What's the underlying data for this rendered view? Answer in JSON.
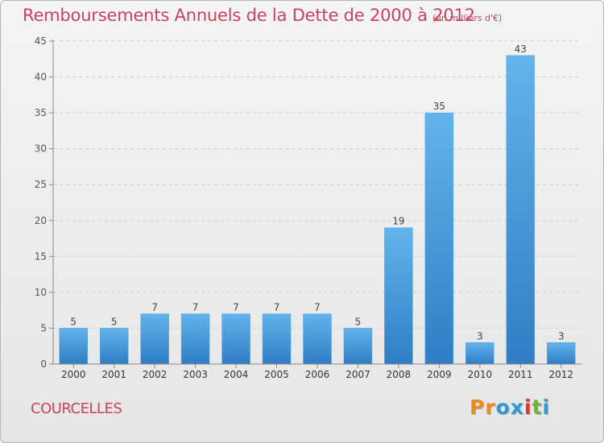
{
  "header": {
    "title": "Remboursements Annuels de la Dette de 2000 à 2012",
    "subtitle": "(en milliers d'€)"
  },
  "footer": {
    "commune": "COURCELLES",
    "logo_letters": [
      "P",
      "r",
      "o",
      "x",
      "i",
      "t",
      "i"
    ]
  },
  "colors": {
    "title": "#c8435e",
    "bar_top": "#63b3ec",
    "bar_bottom": "#2f7ec4",
    "logo_letters": [
      "#f08a1c",
      "#f08a1c",
      "#2f9ad8",
      "#2f9ad8",
      "#e5332a",
      "#69b534",
      "#2f9ad8"
    ]
  },
  "chart_data": {
    "type": "bar",
    "categories": [
      "2000",
      "2001",
      "2002",
      "2003",
      "2004",
      "2005",
      "2006",
      "2007",
      "2008",
      "2009",
      "2010",
      "2011",
      "2012"
    ],
    "values": [
      5,
      5,
      7,
      7,
      7,
      7,
      7,
      5,
      19,
      35,
      3,
      43,
      3
    ],
    "data_labels": [
      "5",
      "5",
      "7",
      "7",
      "7",
      "7",
      "7",
      "5",
      "19",
      "35",
      "3",
      "43",
      "3"
    ],
    "title": "Remboursements Annuels de la Dette de 2000 à 2012",
    "subtitle": "(en milliers d'€)",
    "xlabel": "",
    "ylabel": "",
    "ylim": [
      0,
      45
    ],
    "yticks": [
      "0",
      "5",
      "10",
      "15",
      "20",
      "25",
      "30",
      "35",
      "40",
      "45"
    ],
    "grid": true
  }
}
